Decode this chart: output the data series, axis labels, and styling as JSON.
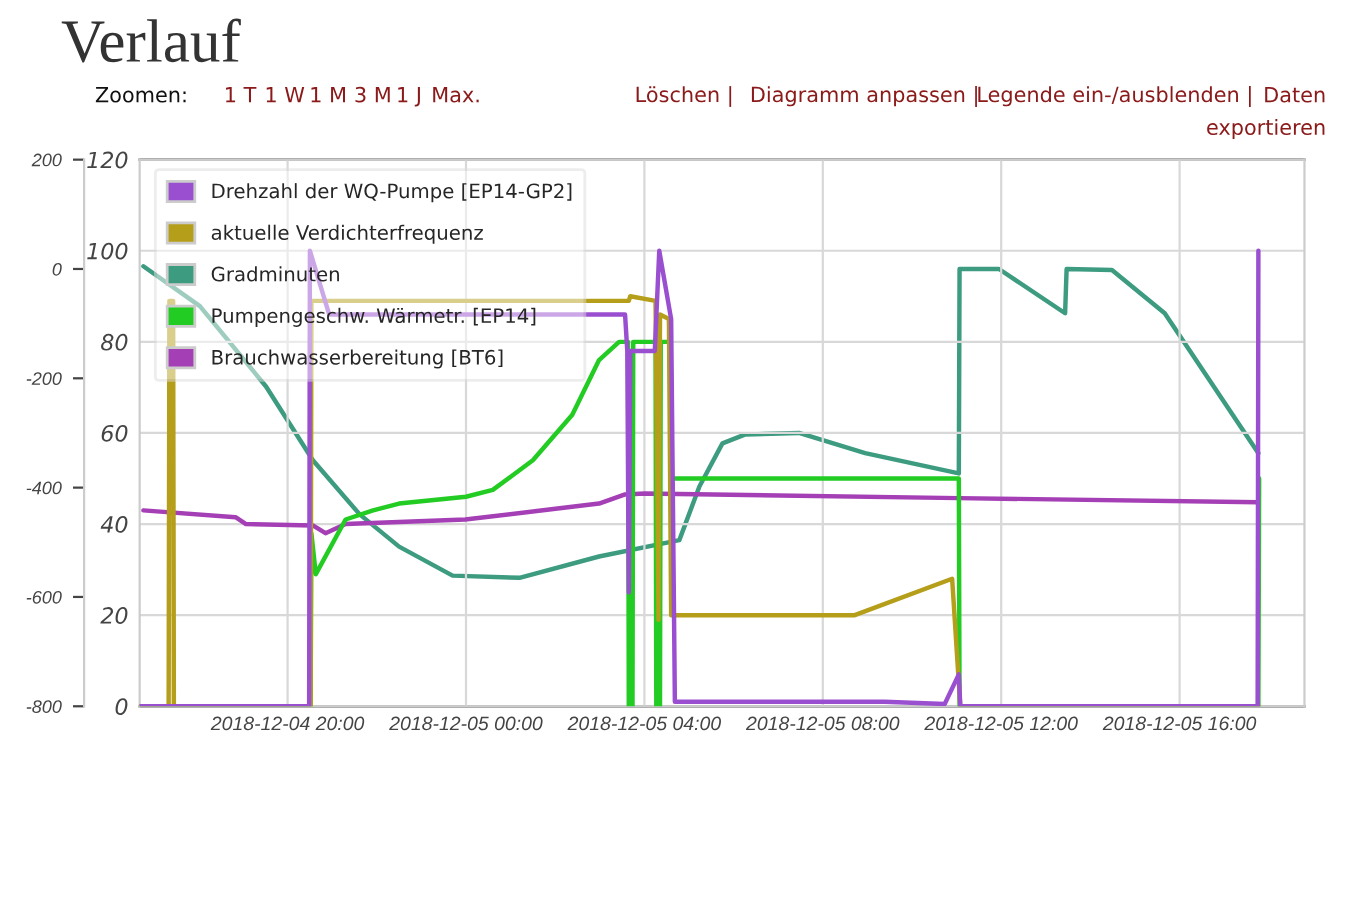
{
  "chart_data": {
    "type": "line",
    "title": "Verlauf",
    "annotations": [
      "Zoomen:",
      "1 T",
      "1 W",
      "1 M",
      "3 M",
      "1 J",
      "Max.",
      "Löschen |",
      "Diagramm anpassen |",
      "Legende ein-/ausblenden |",
      "Daten exportieren"
    ],
    "xlim": [
      "2018-12-04T16:41",
      "2018-12-05T18:48"
    ],
    "xticks": [
      {
        "value": "2018-12-04T20:00",
        "label": "2018-12-04 20:00"
      },
      {
        "value": "2018-12-05T00:00",
        "label": "2018-12-05 00:00"
      },
      {
        "value": "2018-12-05T04:00",
        "label": "2018-12-05 04:00"
      },
      {
        "value": "2018-12-05T08:00",
        "label": "2018-12-05 08:00"
      },
      {
        "value": "2018-12-05T12:00",
        "label": "2018-12-05 12:00"
      },
      {
        "value": "2018-12-05T16:00",
        "label": "2018-12-05 16:00"
      }
    ],
    "ylim": [
      0,
      120
    ],
    "yticks": [
      0,
      20,
      40,
      60,
      80,
      100,
      120
    ],
    "y2lim": [
      -800,
      200
    ],
    "y2ticks": [
      -800,
      -600,
      -400,
      -200,
      0,
      200
    ],
    "grid": true,
    "legend": "top left",
    "line_style": "solid",
    "marker": "none",
    "series": [
      {
        "name": "Drehzahl der WQ-Pumpe [EP14-GP2]",
        "color": "#9a4fd0",
        "x": [
          "2018-12-04T16:41",
          "2018-12-04T20:29",
          "2018-12-04T20:30",
          "2018-12-04T20:56",
          "2018-12-05T03:34",
          "2018-12-05T03:37",
          "2018-12-05T03:39",
          "2018-12-05T03:41",
          "2018-12-05T04:14",
          "2018-12-05T04:20",
          "2018-12-05T04:36",
          "2018-12-05T04:41",
          "2018-12-05T09:23",
          "2018-12-05T10:44",
          "2018-12-05T11:03",
          "2018-12-05T11:05",
          "2018-12-05T17:45",
          "2018-12-05T17:46"
        ],
        "values": [
          0,
          0,
          100,
          86,
          86,
          78,
          25,
          78,
          78,
          100,
          85,
          1,
          1,
          0.5,
          7,
          0,
          0,
          100
        ]
      },
      {
        "name": "aktuelle Verdichterfrequenz",
        "color": "#b59e1a",
        "x": [
          "2018-12-04T16:41",
          "2018-12-04T17:20",
          "2018-12-04T17:21",
          "2018-12-04T17:26",
          "2018-12-04T17:27",
          "2018-12-04T20:31",
          "2018-12-04T20:32",
          "2018-12-05T03:39",
          "2018-12-05T03:41",
          "2018-12-05T04:15",
          "2018-12-05T04:19",
          "2018-12-05T04:21",
          "2018-12-05T04:33",
          "2018-12-05T04:36",
          "2018-12-05T08:43",
          "2018-12-05T10:54",
          "2018-12-05T11:05",
          "2018-12-05T17:46"
        ],
        "values": [
          0,
          0,
          89,
          89,
          0,
          0,
          89,
          89,
          90,
          89,
          19,
          86,
          85,
          20,
          20,
          28,
          0,
          0
        ]
      },
      {
        "name": "Gradminuten",
        "color": "#3d9c80",
        "axis": "y2",
        "x": [
          "2018-12-04T16:46",
          "2018-12-04T18:02",
          "2018-12-04T19:31",
          "2018-12-04T20:34",
          "2018-12-04T21:37",
          "2018-12-04T22:30",
          "2018-12-04T23:42",
          "2018-12-05T01:12",
          "2018-12-05T02:59",
          "2018-12-05T04:47",
          "2018-12-05T05:14",
          "2018-12-05T05:45",
          "2018-12-05T06:15",
          "2018-12-05T07:28",
          "2018-12-05T08:57",
          "2018-12-05T11:03",
          "2018-12-05T11:04",
          "2018-12-05T11:57",
          "2018-12-05T13:26",
          "2018-12-05T13:28",
          "2018-12-05T14:29",
          "2018-12-05T15:40",
          "2018-12-05T17:46"
        ],
        "values": [
          5,
          -68,
          -215,
          -350,
          -449,
          -508,
          -561,
          -565,
          -526,
          -496,
          -398,
          -319,
          -303,
          -300,
          -337,
          -374,
          0,
          0,
          -81,
          0,
          -2,
          -81,
          -337
        ]
      },
      {
        "name": "Pumpengeschw. Wärmetr. [EP14]",
        "color": "#22cc22",
        "x": [
          "2018-12-04T16:41",
          "2018-12-04T20:31",
          "2018-12-04T20:32",
          "2018-12-04T20:38",
          "2018-12-04T21:18",
          "2018-12-04T21:55",
          "2018-12-04T22:30",
          "2018-12-05T00:00",
          "2018-12-05T00:36",
          "2018-12-05T01:30",
          "2018-12-05T02:23",
          "2018-12-05T02:59",
          "2018-12-05T03:26",
          "2018-12-05T03:38",
          "2018-12-05T03:39",
          "2018-12-05T03:44",
          "2018-12-05T03:45",
          "2018-12-05T04:15",
          "2018-12-05T04:16",
          "2018-12-05T04:21",
          "2018-12-05T04:22",
          "2018-12-05T04:35",
          "2018-12-05T04:36",
          "2018-12-05T11:03",
          "2018-12-05T11:04",
          "2018-12-05T17:46",
          "2018-12-05T17:47"
        ],
        "values": [
          0,
          0,
          38,
          29,
          41,
          43,
          44.5,
          46,
          47.5,
          54,
          64,
          76,
          80,
          80,
          0,
          0,
          80,
          80,
          0,
          0,
          80,
          80,
          50,
          50,
          0,
          0,
          50
        ]
      },
      {
        "name": "Brauchwasserbereitung [BT6]",
        "color": "#a43fb5",
        "x": [
          "2018-12-04T16:46",
          "2018-12-04T18:50",
          "2018-12-04T19:04",
          "2018-12-04T20:34",
          "2018-12-04T20:51",
          "2018-12-04T21:18",
          "2018-12-04T23:59",
          "2018-12-05T02:59",
          "2018-12-05T03:34",
          "2018-12-05T04:00",
          "2018-12-05T11:03",
          "2018-12-05T17:46"
        ],
        "values": [
          43,
          41.5,
          40,
          39.7,
          38,
          40,
          41,
          44.5,
          46.5,
          46.7,
          45.7,
          44.8
        ]
      }
    ]
  }
}
